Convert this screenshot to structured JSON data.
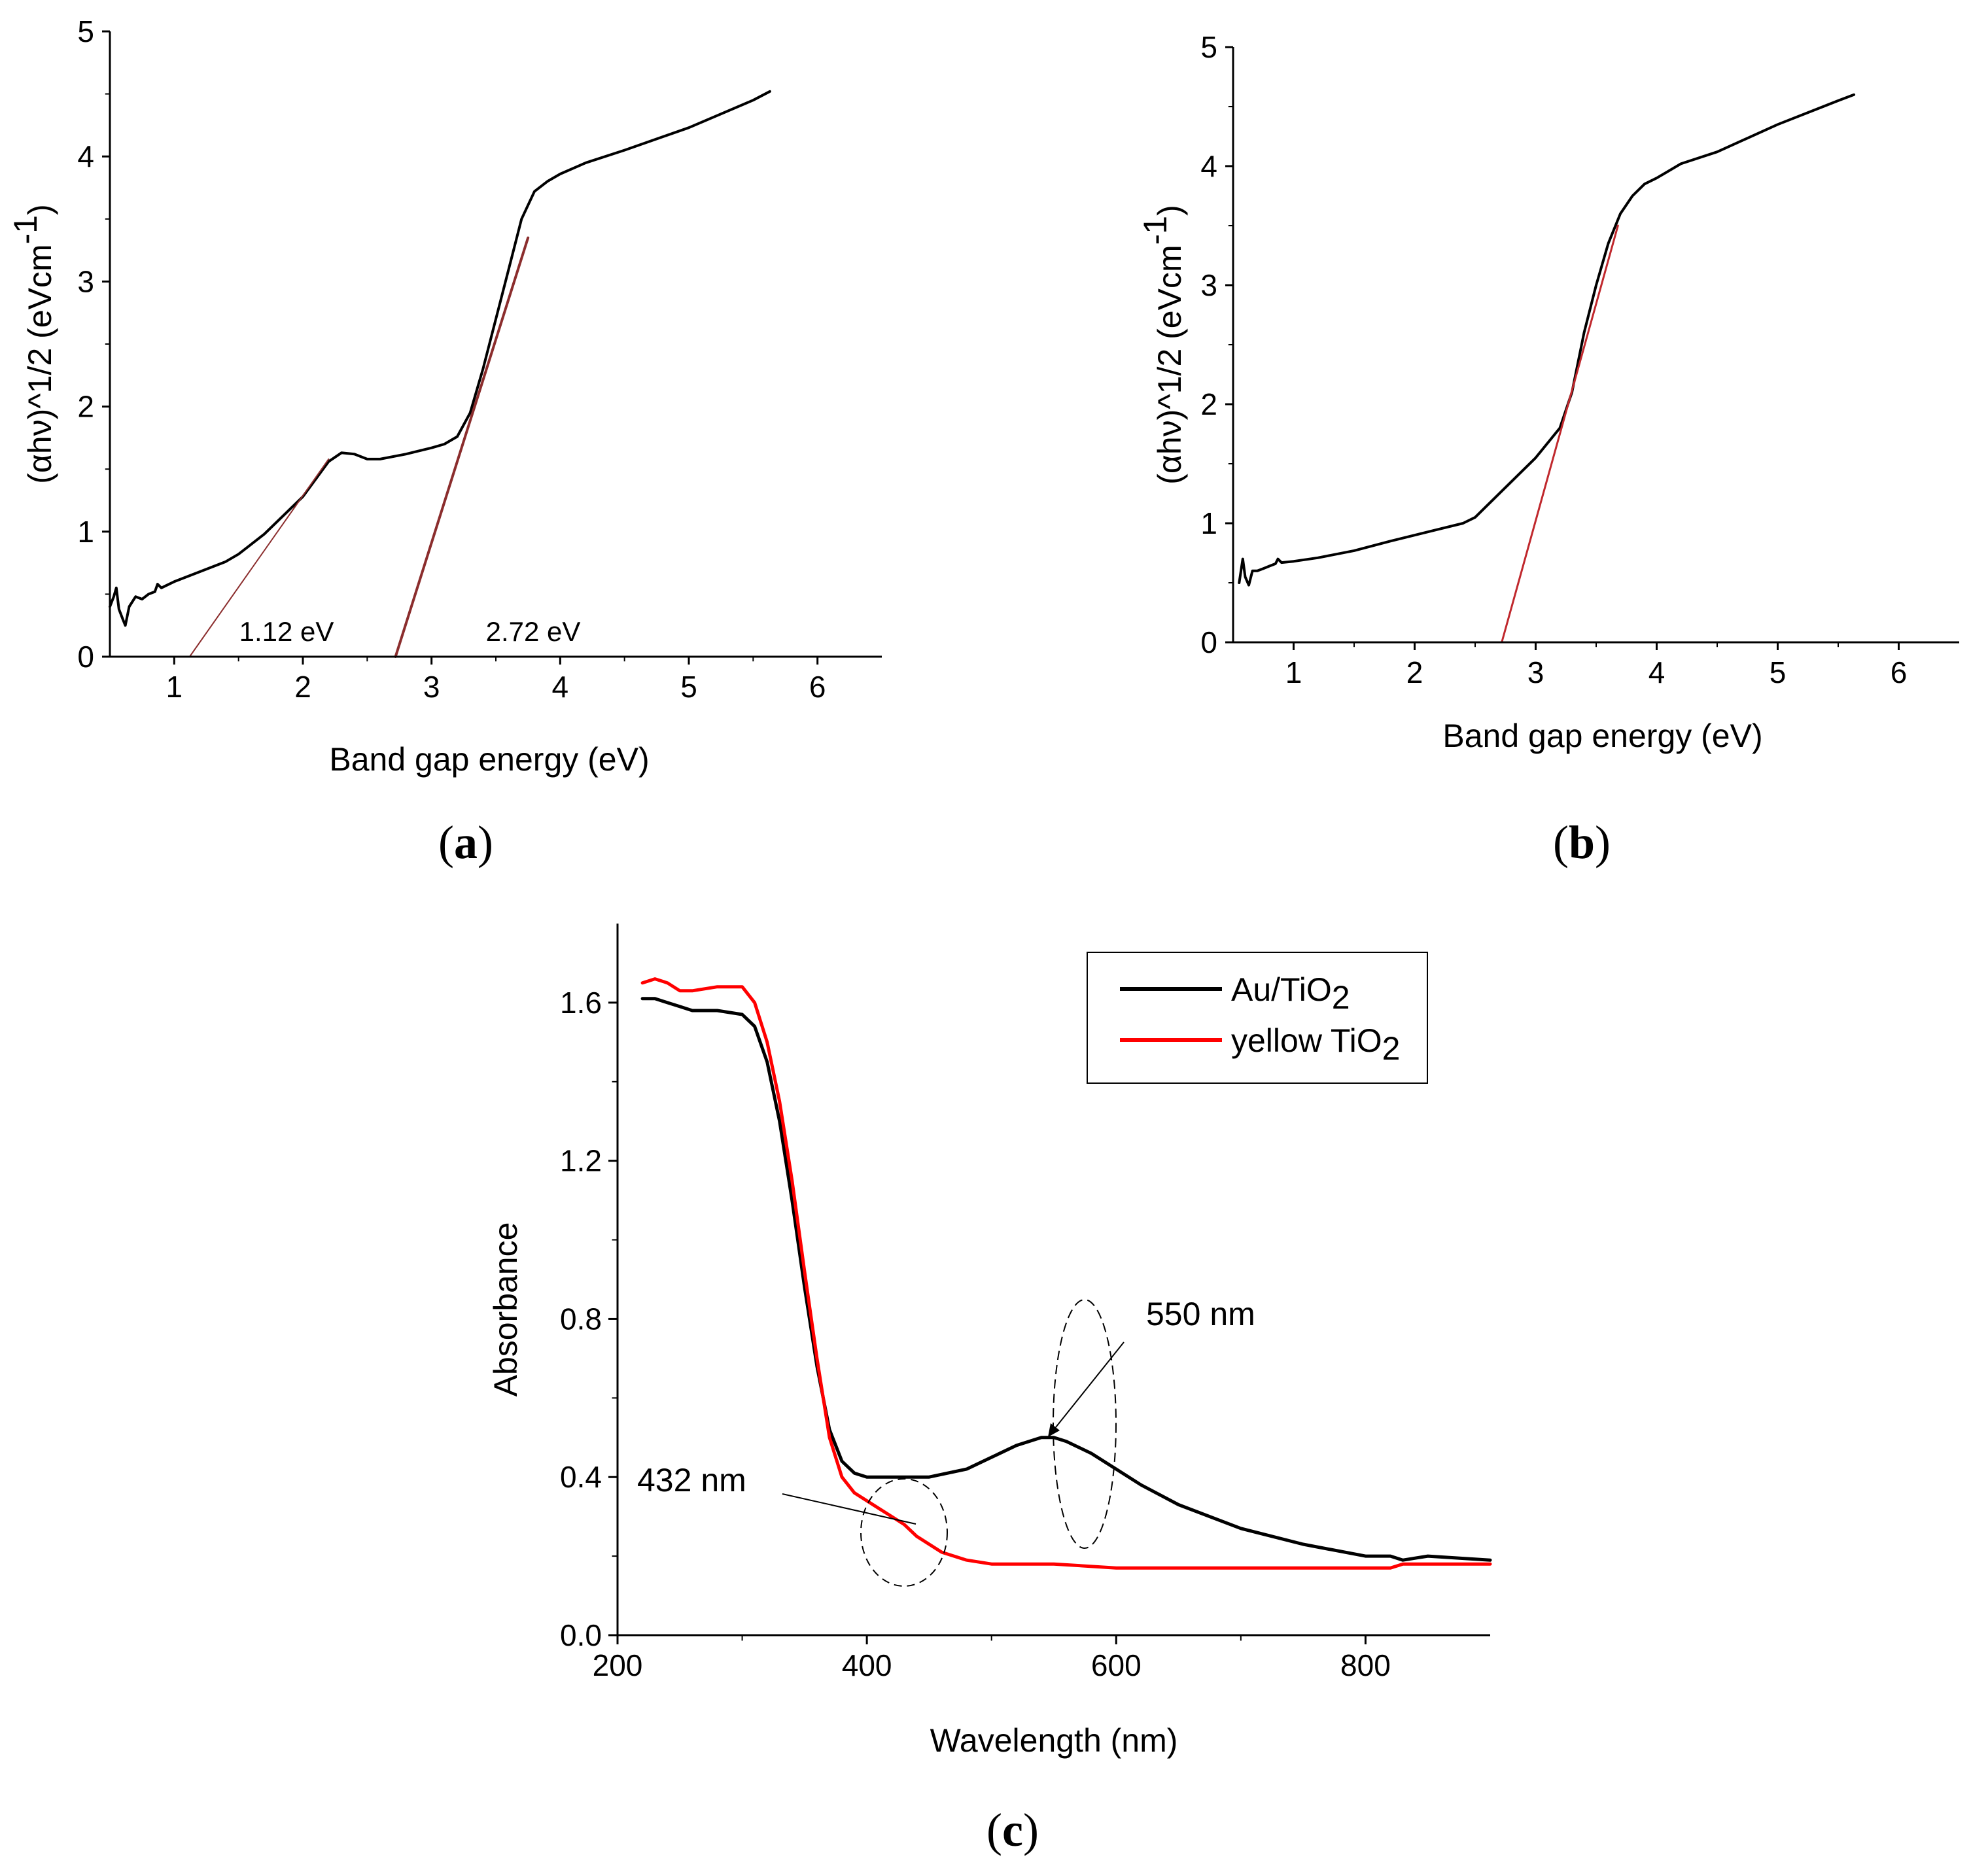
{
  "chart_data": [
    {
      "panel": "(a)",
      "panel_letter": "a",
      "type": "line",
      "xlabel": "Band gap energy (eV)",
      "ylabel": "(αhν)^1/2 (eVcm",
      "ylabel_sup": "-1",
      "ylabel_close": ")",
      "xlim": [
        0.5,
        6.5
      ],
      "ylim": [
        0,
        5
      ],
      "xticks": [
        1,
        2,
        3,
        4,
        5,
        6
      ],
      "yticks": [
        0,
        1,
        2,
        3,
        4,
        5
      ],
      "series": [
        {
          "name": "curve",
          "color": "#000000",
          "x": [
            0.5,
            0.53,
            0.55,
            0.57,
            0.6,
            0.62,
            0.65,
            0.7,
            0.75,
            0.8,
            0.85,
            0.87,
            0.9,
            1.0,
            1.2,
            1.4,
            1.5,
            1.7,
            1.9,
            2.0,
            2.1,
            2.2,
            2.3,
            2.4,
            2.5,
            2.6,
            2.8,
            3.0,
            3.1,
            3.2,
            3.3,
            3.4,
            3.5,
            3.6,
            3.7,
            3.8,
            3.9,
            4.0,
            4.2,
            4.5,
            5.0,
            5.5,
            5.63
          ],
          "y": [
            0.4,
            0.48,
            0.55,
            0.38,
            0.3,
            0.25,
            0.4,
            0.48,
            0.46,
            0.5,
            0.52,
            0.58,
            0.55,
            0.6,
            0.68,
            0.76,
            0.82,
            0.98,
            1.18,
            1.28,
            1.42,
            1.56,
            1.63,
            1.62,
            1.58,
            1.58,
            1.62,
            1.67,
            1.7,
            1.76,
            1.95,
            2.3,
            2.7,
            3.1,
            3.5,
            3.72,
            3.8,
            3.86,
            3.95,
            4.05,
            4.23,
            4.45,
            4.52
          ]
        },
        {
          "name": "fit-1",
          "color": "#8b2d2d",
          "x": [
            1.12,
            2.2
          ],
          "y": [
            0,
            1.58
          ]
        },
        {
          "name": "fit-2",
          "color": "#8b2d2d",
          "x": [
            2.72,
            3.75
          ],
          "y": [
            0,
            3.35
          ]
        }
      ],
      "annotations": [
        {
          "text": "1.12 eV",
          "x": 1.45,
          "y": 0.2
        },
        {
          "text": "2.72 eV",
          "x": 3.35,
          "y": 0.2
        }
      ]
    },
    {
      "panel": "(b)",
      "panel_letter": "b",
      "type": "line",
      "xlabel": "Band gap energy (eV)",
      "ylabel": "(αhν)^1/2 (eVcm",
      "ylabel_sup": "-1",
      "ylabel_close": ")",
      "xlim": [
        0.5,
        6.5
      ],
      "ylim": [
        0,
        5
      ],
      "xticks": [
        1,
        2,
        3,
        4,
        5,
        6
      ],
      "yticks": [
        0,
        1,
        2,
        3,
        4,
        5
      ],
      "series": [
        {
          "name": "curve",
          "color": "#000000",
          "x": [
            0.55,
            0.58,
            0.6,
            0.63,
            0.66,
            0.7,
            0.75,
            0.8,
            0.85,
            0.87,
            0.9,
            1.0,
            1.2,
            1.5,
            1.8,
            2.0,
            2.2,
            2.4,
            2.5,
            2.6,
            2.8,
            3.0,
            3.2,
            3.3,
            3.4,
            3.5,
            3.6,
            3.7,
            3.8,
            3.9,
            4.0,
            4.2,
            4.5,
            5.0,
            5.5,
            5.63
          ],
          "y": [
            0.5,
            0.7,
            0.55,
            0.48,
            0.6,
            0.6,
            0.62,
            0.64,
            0.66,
            0.7,
            0.67,
            0.68,
            0.71,
            0.77,
            0.85,
            0.9,
            0.95,
            1.0,
            1.05,
            1.15,
            1.35,
            1.55,
            1.8,
            2.1,
            2.6,
            3.0,
            3.35,
            3.6,
            3.75,
            3.85,
            3.9,
            4.02,
            4.12,
            4.35,
            4.55,
            4.6
          ]
        },
        {
          "name": "fit",
          "color": "#c0282d",
          "x": [
            2.72,
            3.68
          ],
          "y": [
            0,
            3.5
          ]
        }
      ],
      "annotations": []
    },
    {
      "panel": "(c)",
      "panel_letter": "c",
      "type": "line",
      "xlabel": "Wavelength (nm)",
      "ylabel": "Absorbance",
      "xlim": [
        200,
        900
      ],
      "ylim": [
        0.0,
        1.8
      ],
      "xticks": [
        200,
        400,
        600,
        800
      ],
      "xtick_labels": [
        "200",
        "400",
        "600",
        "800"
      ],
      "yticks": [
        0.0,
        0.4,
        0.8,
        1.2,
        1.6
      ],
      "ytick_labels": [
        "0.0",
        "0.4",
        "0.8",
        "1.2",
        "1.6"
      ],
      "legend_position": "top-right",
      "series": [
        {
          "name": "Au/TiO",
          "name_sub": "2",
          "color": "#000000",
          "x": [
            220,
            230,
            240,
            250,
            260,
            280,
            300,
            310,
            320,
            330,
            340,
            350,
            360,
            370,
            380,
            390,
            400,
            420,
            450,
            480,
            500,
            520,
            540,
            550,
            560,
            580,
            600,
            620,
            650,
            700,
            750,
            800,
            820,
            830,
            850,
            900
          ],
          "y": [
            1.61,
            1.61,
            1.6,
            1.59,
            1.58,
            1.58,
            1.57,
            1.54,
            1.45,
            1.3,
            1.1,
            0.88,
            0.68,
            0.52,
            0.44,
            0.41,
            0.4,
            0.4,
            0.4,
            0.42,
            0.45,
            0.48,
            0.5,
            0.5,
            0.49,
            0.46,
            0.42,
            0.38,
            0.33,
            0.27,
            0.23,
            0.2,
            0.2,
            0.19,
            0.2,
            0.19
          ]
        },
        {
          "name": "yellow TiO",
          "name_sub": "2",
          "color": "#ff0000",
          "x": [
            220,
            230,
            240,
            250,
            260,
            280,
            300,
            310,
            320,
            330,
            340,
            350,
            360,
            370,
            380,
            390,
            400,
            410,
            420,
            430,
            440,
            460,
            480,
            500,
            520,
            550,
            600,
            650,
            700,
            750,
            800,
            820,
            830,
            850,
            900
          ],
          "y": [
            1.65,
            1.66,
            1.65,
            1.63,
            1.63,
            1.64,
            1.64,
            1.6,
            1.5,
            1.35,
            1.15,
            0.92,
            0.7,
            0.5,
            0.4,
            0.36,
            0.34,
            0.32,
            0.3,
            0.28,
            0.25,
            0.21,
            0.19,
            0.18,
            0.18,
            0.18,
            0.17,
            0.17,
            0.17,
            0.17,
            0.17,
            0.17,
            0.18,
            0.18,
            0.18
          ]
        }
      ],
      "annotations": [
        {
          "text": "550 nm",
          "x": 570,
          "y": 0.82
        },
        {
          "text": "432 nm",
          "x": 320,
          "y": 0.36
        }
      ]
    }
  ]
}
